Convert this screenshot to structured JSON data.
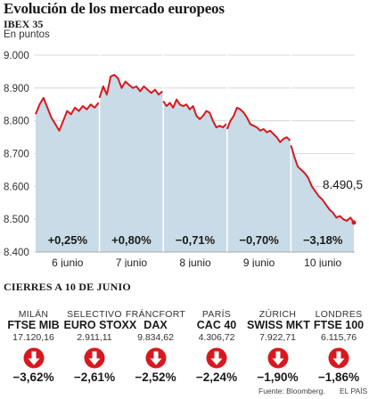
{
  "title": "Evolución de los mercado europeos",
  "index_name": "IBEX 35",
  "unit": "En puntos",
  "chart_data": {
    "type": "area",
    "title": "IBEX 35",
    "ylabel": "En puntos",
    "ylim": [
      8400,
      9000
    ],
    "yticks": [
      "9.000",
      "8.900",
      "8.800",
      "8.700",
      "8.600",
      "8.500",
      "8.400"
    ],
    "ytick_values": [
      9000,
      8900,
      8800,
      8700,
      8600,
      8500,
      8400
    ],
    "grid": true,
    "categories": [
      "6 junio",
      "7 junio",
      "8 junio",
      "9 junio",
      "10 junio"
    ],
    "day_changes": [
      "+0,25%",
      "+0,80%",
      "−0,71%",
      "−0,70%",
      "−3,18%"
    ],
    "last_value_label": "8.490,5",
    "series": [
      {
        "values": [
          [
            8820,
            8850,
            8870,
            8840,
            8810,
            8790,
            8770,
            8800,
            8830,
            8820,
            8840,
            8830,
            8845,
            8835,
            8850,
            8840,
            8855
          ],
          [
            8870,
            8905,
            8880,
            8935,
            8940,
            8930,
            8900,
            8920,
            8910,
            8900,
            8905,
            8890,
            8905,
            8895,
            8885,
            8895,
            8880,
            8890
          ],
          [
            8860,
            8845,
            8855,
            8840,
            8865,
            8850,
            8845,
            8850,
            8835,
            8845,
            8815,
            8805,
            8815,
            8830,
            8825,
            8800,
            8780,
            8785,
            8780,
            8790
          ],
          [
            8775,
            8800,
            8815,
            8840,
            8835,
            8825,
            8810,
            8790,
            8785,
            8780,
            8770,
            8775,
            8765,
            8770,
            8760,
            8750,
            8735,
            8745,
            8750,
            8740
          ],
          [
            8725,
            8690,
            8660,
            8650,
            8640,
            8625,
            8600,
            8585,
            8570,
            8560,
            8545,
            8530,
            8520,
            8505,
            8510,
            8500,
            8495,
            8505,
            8490
          ]
        ]
      }
    ]
  },
  "section_title": "CIERRES A 10 DE JUNIO",
  "markets": [
    {
      "city": "MILÁN",
      "index": "FTSE MIB",
      "value": "17.120,16",
      "change": "−3,62%",
      "icon": "down-arrow-icon"
    },
    {
      "city": "SELECTIVO",
      "index": "EURO STOXX",
      "value": "2.911,11",
      "change": "−2,61%",
      "icon": "down-arrow-icon"
    },
    {
      "city": "FRÁNCFORT",
      "index": "DAX",
      "value": "9.834,62",
      "change": "−2,52%",
      "icon": "down-arrow-icon"
    },
    {
      "city": "PARÍS",
      "index": "CAC 40",
      "value": "4.306,72",
      "change": "−2,24%",
      "icon": "down-arrow-icon"
    },
    {
      "city": "ZÚRICH",
      "index": "SWISS MKT",
      "value": "7.922,71",
      "change": "−1,90%",
      "icon": "down-arrow-icon"
    },
    {
      "city": "LONDRES",
      "index": "FTSE 100",
      "value": "6.115,76",
      "change": "−1,86%",
      "icon": "down-arrow-icon"
    }
  ],
  "source": "Fuente: Bloomberg.",
  "credit": "EL PAÍS",
  "colors": {
    "line": "#d7191f",
    "area": "#c8dbe6",
    "arrow": "#d7191f",
    "grid": "#cfcfcf",
    "separator": "#ffffff"
  }
}
